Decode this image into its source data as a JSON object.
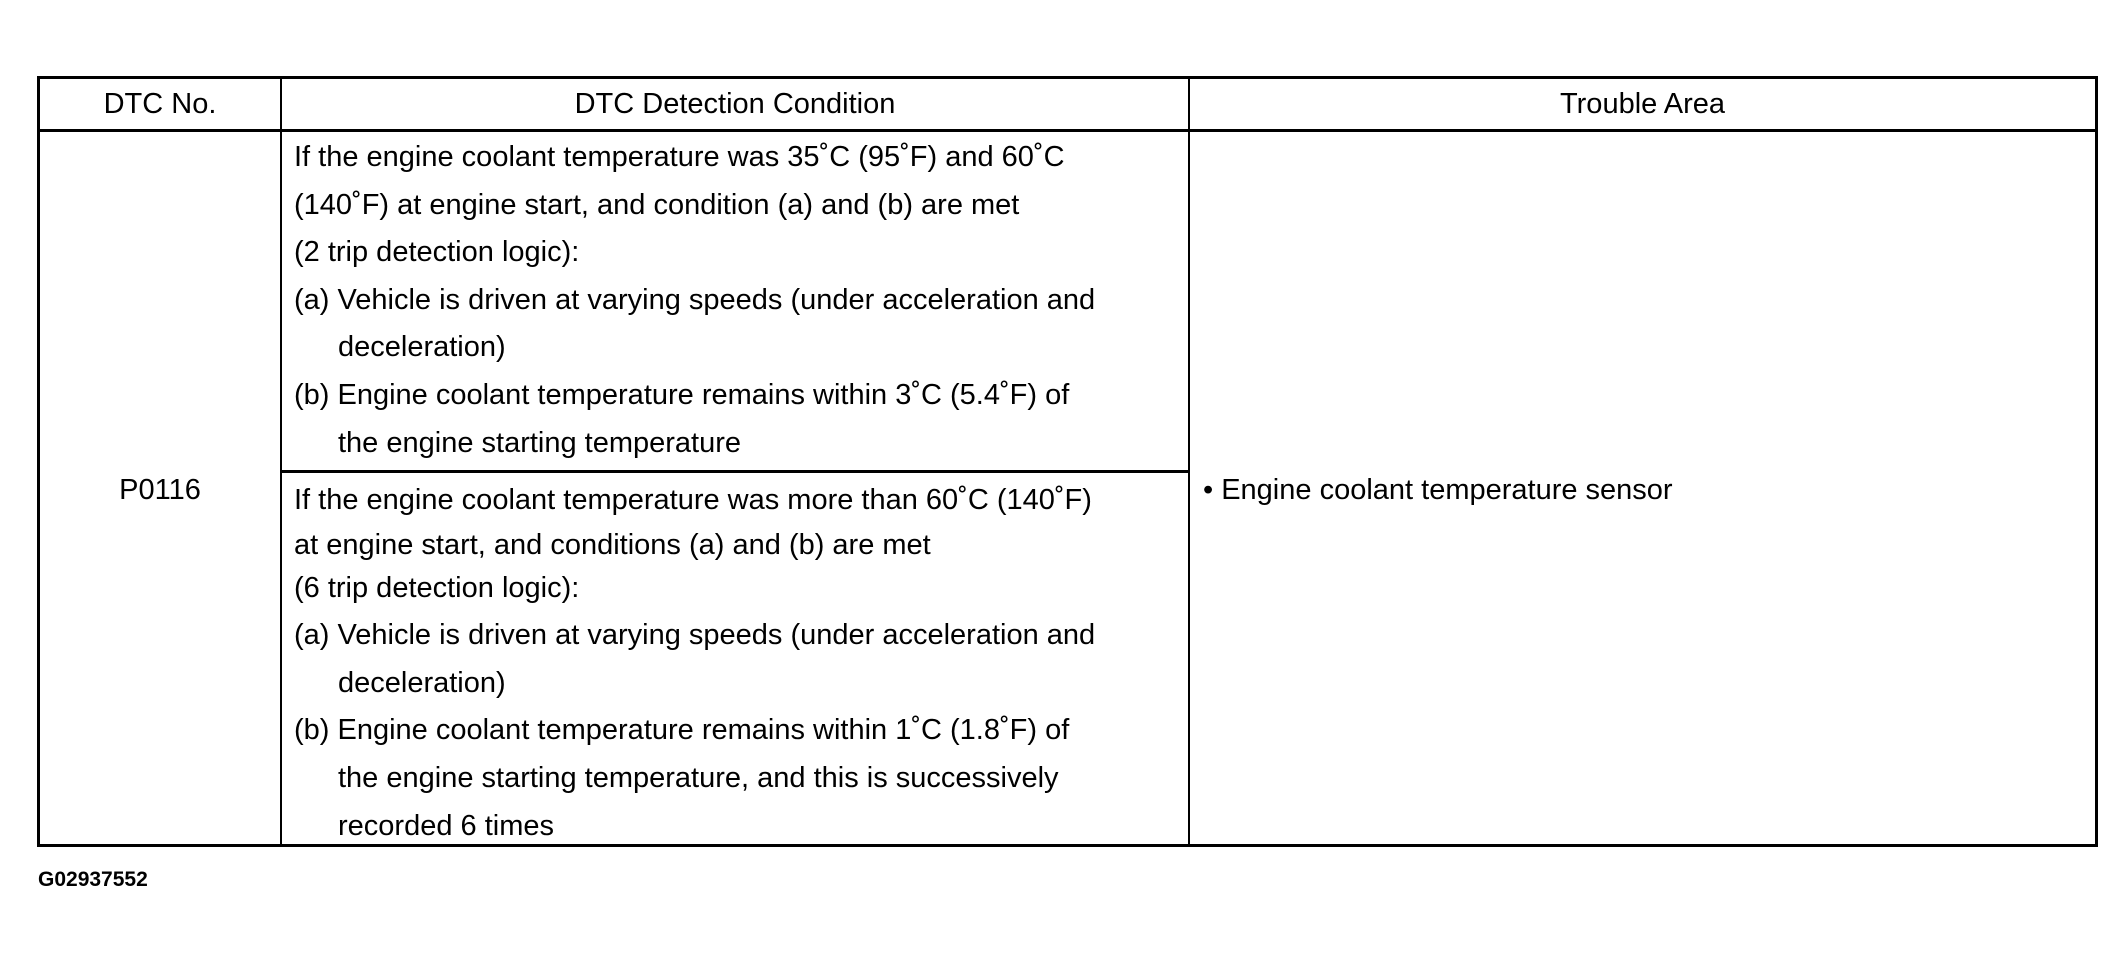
{
  "table": {
    "headers": [
      "DTC No.",
      "DTC Detection Condition",
      "Trouble Area"
    ],
    "dtc_no": "P0116",
    "conditions": [
      {
        "lines": [
          "If the engine coolant temperature was 35˚C (95˚F) and 60˚C",
          "(140˚F) at engine start, and condition (a) and (b) are met",
          "(2 trip detection logic):",
          "(a) Vehicle is driven at varying speeds (under acceleration and",
          "deceleration)",
          "(b) Engine coolant temperature remains within 3˚C (5.4˚F) of",
          "the engine starting temperature"
        ]
      },
      {
        "lines": [
          "If the engine coolant temperature was more than 60˚C (140˚F)",
          "at engine start, and conditions (a) and (b) are met",
          "(6 trip detection logic):",
          "(a) Vehicle is driven at varying speeds (under acceleration and",
          "deceleration)",
          "(b) Engine coolant temperature remains within 1˚C (1.8˚F) of",
          "the engine starting temperature, and this is successively",
          "recorded 6 times"
        ]
      }
    ],
    "trouble_area": "• Engine coolant temperature sensor"
  },
  "figure_id": "G02937552"
}
